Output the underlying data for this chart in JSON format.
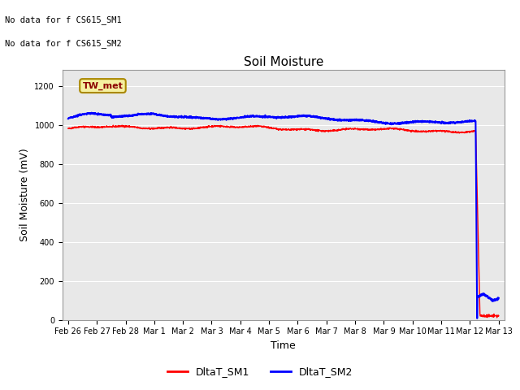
{
  "title": "Soil Moisture",
  "xlabel": "Time",
  "ylabel": "Soil Moisture (mV)",
  "ylim": [
    0,
    1280
  ],
  "yticks": [
    0,
    200,
    400,
    600,
    800,
    1000,
    1200
  ],
  "bg_color": "#e8e8e8",
  "text_annotations": [
    "No data for f CS615_SM1",
    "No data for f CS615_SM2"
  ],
  "tw_met_label": "TW_met",
  "legend_labels": [
    "DltaT_SM1",
    "DltaT_SM2"
  ],
  "legend_colors": [
    "red",
    "blue"
  ],
  "x_tick_labels": [
    "Feb 26",
    "Feb 27",
    "Feb 28",
    "Mar 1",
    "Mar 2",
    "Mar 3",
    "Mar 4",
    "Mar 5",
    "Mar 6",
    "Mar 7",
    "Mar 8",
    "Mar 9",
    "Mar 10",
    "Mar 11",
    "Mar 12",
    "Mar 13"
  ]
}
